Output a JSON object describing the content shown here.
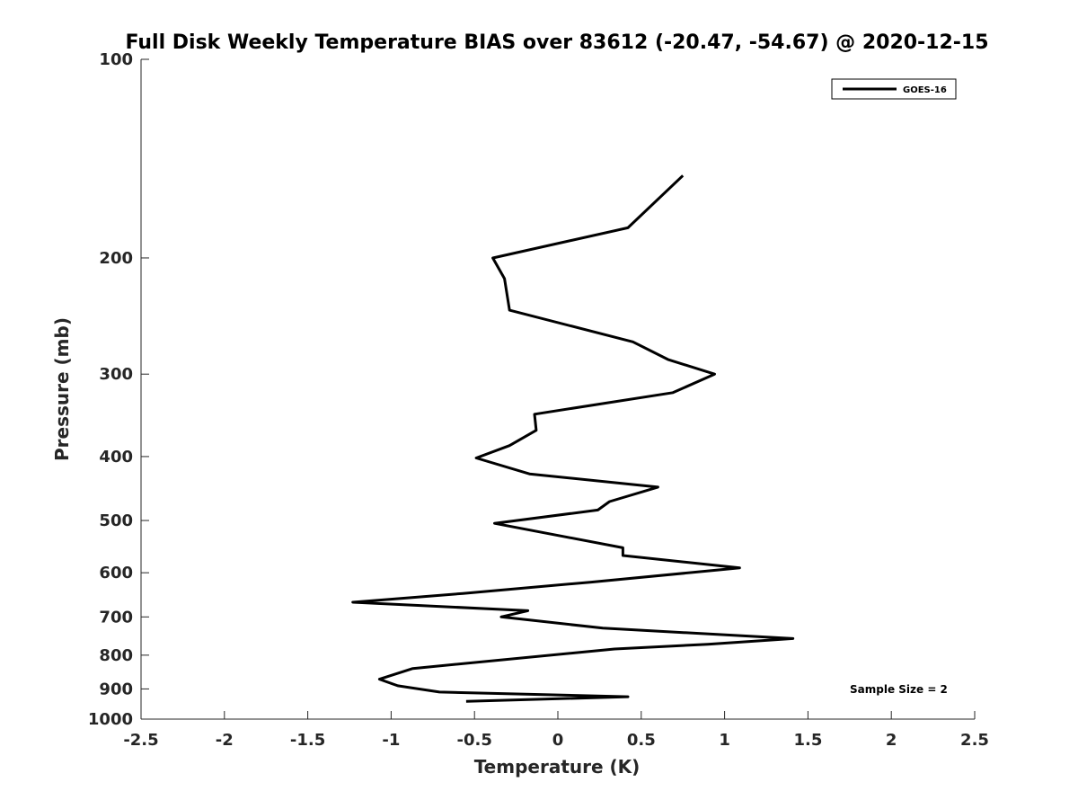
{
  "chart_data": {
    "type": "line",
    "title": "Full Disk Weekly Temperature BIAS over 83612 (-20.47, -54.67) @ 2020-12-15",
    "xlabel": "Temperature (K)",
    "ylabel": "Pressure (mb)",
    "xlim": [
      -2.5,
      2.5
    ],
    "ylim": [
      100,
      1000
    ],
    "y_scale": "log",
    "y_reversed": true,
    "x_ticks": [
      -2.5,
      -2,
      -1.5,
      -1,
      -0.5,
      0,
      0.5,
      1,
      1.5,
      2,
      2.5
    ],
    "x_tick_labels": [
      "-2.5",
      "-2",
      "-1.5",
      "-1",
      "-0.5",
      "0",
      "0.5",
      "1",
      "1.5",
      "2",
      "2.5"
    ],
    "y_ticks": [
      100,
      200,
      300,
      400,
      500,
      600,
      700,
      800,
      900,
      1000
    ],
    "y_tick_labels": [
      "100",
      "200",
      "300",
      "400",
      "500",
      "600",
      "700",
      "800",
      "900",
      "1000"
    ],
    "grid": false,
    "legend_position": "top-right",
    "annotation": "Sample Size = 2",
    "series": [
      {
        "name": "GOES-16",
        "color": "#000000",
        "x": [
          0.75,
          0.42,
          -0.39,
          -0.32,
          -0.29,
          0.45,
          0.66,
          0.94,
          0.69,
          -0.14,
          -0.13,
          -0.29,
          -0.49,
          -0.17,
          0.6,
          0.31,
          0.24,
          -0.38,
          0.39,
          0.39,
          1.09,
          0.2,
          -0.57,
          -1.23,
          -0.18,
          -0.34,
          0.27,
          1.41,
          0.9,
          0.34,
          -0.87,
          -1.07,
          -0.96,
          -0.71,
          0.42,
          -0.55
        ],
        "y": [
          150,
          180,
          200,
          215,
          240,
          268,
          285,
          300,
          320,
          345,
          365,
          385,
          402,
          425,
          445,
          468,
          482,
          505,
          550,
          565,
          590,
          620,
          645,
          665,
          685,
          700,
          728,
          755,
          770,
          783,
          838,
          870,
          890,
          910,
          925,
          940
        ]
      }
    ]
  }
}
